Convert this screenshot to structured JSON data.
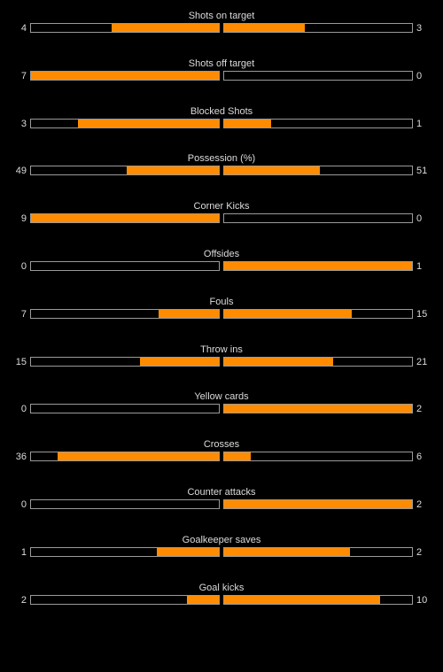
{
  "colors": {
    "background": "#000000",
    "bar_fill": "#ff8c00",
    "bar_border": "#9a9a9a",
    "text": "#dcdcdc"
  },
  "stats": [
    {
      "label": "Shots on target",
      "home": "4",
      "away": "3",
      "home_fill": 0.57,
      "away_fill": 0.43
    },
    {
      "label": "Shots off target",
      "home": "7",
      "away": "0",
      "home_fill": 1.0,
      "away_fill": 0.0
    },
    {
      "label": "Blocked Shots",
      "home": "3",
      "away": "1",
      "home_fill": 0.75,
      "away_fill": 0.25
    },
    {
      "label": "Possession (%)",
      "home": "49",
      "away": "51",
      "home_fill": 0.49,
      "away_fill": 0.51
    },
    {
      "label": "Corner Kicks",
      "home": "9",
      "away": "0",
      "home_fill": 1.0,
      "away_fill": 0.0
    },
    {
      "label": "Offsides",
      "home": "0",
      "away": "1",
      "home_fill": 0.0,
      "away_fill": 1.0
    },
    {
      "label": "Fouls",
      "home": "7",
      "away": "15",
      "home_fill": 0.32,
      "away_fill": 0.68
    },
    {
      "label": "Throw ins",
      "home": "15",
      "away": "21",
      "home_fill": 0.42,
      "away_fill": 0.58
    },
    {
      "label": "Yellow cards",
      "home": "0",
      "away": "2",
      "home_fill": 0.0,
      "away_fill": 1.0
    },
    {
      "label": "Crosses",
      "home": "36",
      "away": "6",
      "home_fill": 0.86,
      "away_fill": 0.14
    },
    {
      "label": "Counter attacks",
      "home": "0",
      "away": "2",
      "home_fill": 0.0,
      "away_fill": 1.0
    },
    {
      "label": "Goalkeeper saves",
      "home": "1",
      "away": "2",
      "home_fill": 0.33,
      "away_fill": 0.67
    },
    {
      "label": "Goal kicks",
      "home": "2",
      "away": "10",
      "home_fill": 0.17,
      "away_fill": 0.83
    }
  ]
}
